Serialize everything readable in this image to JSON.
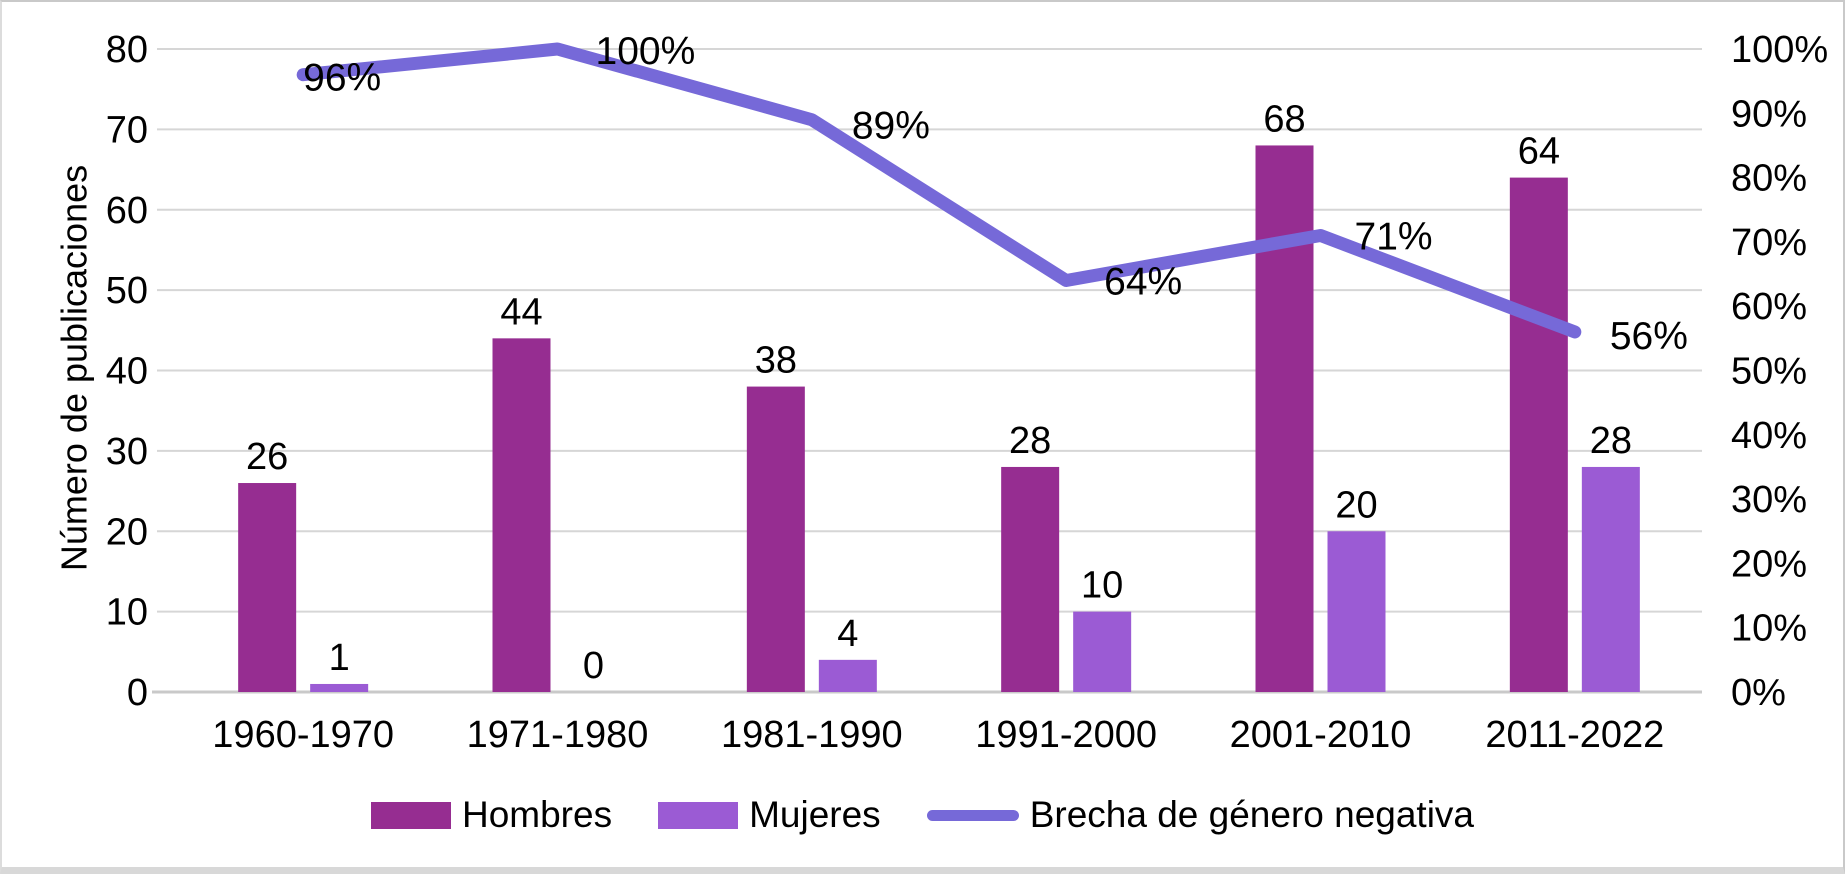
{
  "figure": {
    "legend": [
      {
        "label": "Hombres",
        "swatch": "bar"
      },
      {
        "label": "Mujeres",
        "swatch": "bar"
      },
      {
        "label": "Brecha de género negativa",
        "swatch": "line"
      }
    ]
  },
  "chart_data": {
    "type": "bar+line combo",
    "categories": [
      "1960-1970",
      "1971-1980",
      "1981-1990",
      "1991-2000",
      "2001-2010",
      "2011-2022"
    ],
    "series": [
      {
        "name": "Hombres",
        "type": "bar",
        "axis": "left",
        "color": "#962D91",
        "values": [
          26,
          44,
          38,
          28,
          68,
          64
        ],
        "labels": [
          "26",
          "44",
          "38",
          "28",
          "68",
          "64"
        ]
      },
      {
        "name": "Mujeres",
        "type": "bar",
        "axis": "left",
        "color": "#9B5BD4",
        "values": [
          1,
          0,
          4,
          10,
          20,
          28
        ],
        "labels": [
          "1",
          "0",
          "4",
          "10",
          "20",
          "28"
        ]
      },
      {
        "name": "Brecha de género negativa",
        "type": "line",
        "axis": "right",
        "color": "#7669D8",
        "values": [
          96,
          100,
          89,
          64,
          71,
          56
        ],
        "labels": [
          "96%",
          "100%",
          "89%",
          "64%",
          "71%",
          "56%"
        ]
      }
    ],
    "title": "",
    "xlabel": "",
    "ylabel": "Número de publicaciones",
    "y2label": "",
    "ylim": [
      0,
      80
    ],
    "yticks": [
      "0",
      "10",
      "20",
      "30",
      "40",
      "50",
      "60",
      "70",
      "80"
    ],
    "y2lim": [
      0,
      100
    ],
    "y2ticks": [
      "0%",
      "10%",
      "20%",
      "30%",
      "40%",
      "50%",
      "60%",
      "70%",
      "80%",
      "90%",
      "100%"
    ],
    "grid": true,
    "legend_position": "bottom"
  },
  "colors": {
    "background": "#ffffff",
    "gridline": "#d6d6d6",
    "axis_line": "#c9c9c9",
    "text": "#000000",
    "frame": "#c9c9c9"
  }
}
